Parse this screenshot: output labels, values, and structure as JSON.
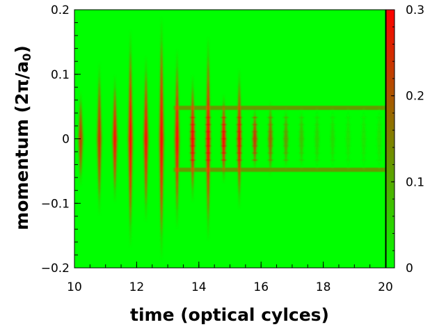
{
  "chart_data": {
    "type": "heatmap",
    "title": "",
    "xlabel": "time (optical cylces)",
    "ylabel_main": "momentum (2π/a",
    "ylabel_sub": "0",
    "ylabel_close": ")",
    "xlim": [
      10,
      20
    ],
    "ylim": [
      -0.2,
      0.2
    ],
    "x_ticks": [
      10,
      12,
      14,
      16,
      18,
      20
    ],
    "x_tick_labels": [
      "10",
      "12",
      "14",
      "16",
      "18",
      "20"
    ],
    "y_ticks": [
      -0.2,
      -0.1,
      0,
      0.1,
      0.2
    ],
    "y_tick_labels": [
      "−0.2",
      "−0.1",
      "0",
      "0.1",
      "0.2"
    ],
    "colorbar": {
      "range": [
        0,
        0.3
      ],
      "ticks": [
        0,
        0.1,
        0.2,
        0.3
      ],
      "tick_labels": [
        "0",
        "0.1",
        "0.2",
        "0.3"
      ],
      "colors": [
        "#00ff00",
        "#ff0000"
      ]
    },
    "grid": false,
    "period": 1,
    "cycle_peaks": [
      {
        "t": 10.2,
        "amplitude": 0.22,
        "half_width": 0.075
      },
      {
        "t": 10.8,
        "amplitude": 0.24,
        "half_width": 0.12
      },
      {
        "t": 11.3,
        "amplitude": 0.3,
        "half_width": 0.1
      },
      {
        "t": 11.8,
        "amplitude": 0.3,
        "half_width": 0.17
      },
      {
        "t": 12.3,
        "amplitude": 0.3,
        "half_width": 0.13
      },
      {
        "t": 12.8,
        "amplitude": 0.3,
        "half_width": 0.19
      },
      {
        "t": 13.3,
        "amplitude": 0.3,
        "half_width": 0.14
      },
      {
        "t": 13.8,
        "amplitude": 0.3,
        "half_width": 0.1
      },
      {
        "t": 14.3,
        "amplitude": 0.3,
        "half_width": 0.16
      },
      {
        "t": 14.8,
        "amplitude": 0.3,
        "half_width": 0.07
      },
      {
        "t": 15.3,
        "amplitude": 0.28,
        "half_width": 0.11
      },
      {
        "t": 15.8,
        "amplitude": 0.24,
        "half_width": 0.05
      },
      {
        "t": 16.3,
        "amplitude": 0.18,
        "half_width": 0.06
      },
      {
        "t": 16.8,
        "amplitude": 0.12,
        "half_width": 0.05
      },
      {
        "t": 17.3,
        "amplitude": 0.07,
        "half_width": 0.05
      },
      {
        "t": 17.8,
        "amplitude": 0.05,
        "half_width": 0.05
      },
      {
        "t": 18.3,
        "amplitude": 0.04,
        "half_width": 0.05
      },
      {
        "t": 18.8,
        "amplitude": 0.03,
        "half_width": 0.05
      },
      {
        "t": 19.3,
        "amplitude": 0.03,
        "half_width": 0.05
      },
      {
        "t": 19.8,
        "amplitude": 0.03,
        "half_width": 0.05
      }
    ],
    "persistent_bands": [
      {
        "k": 0.048,
        "t_start": 13.2,
        "amplitude": 0.13
      },
      {
        "k": -0.048,
        "t_start": 13.2,
        "amplitude": 0.13
      }
    ]
  }
}
